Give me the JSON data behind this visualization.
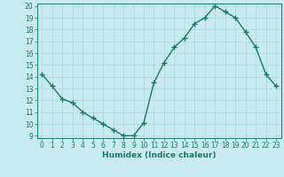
{
  "x": [
    0,
    1,
    2,
    3,
    4,
    5,
    6,
    7,
    8,
    9,
    10,
    11,
    12,
    13,
    14,
    15,
    16,
    17,
    18,
    19,
    20,
    21,
    22,
    23
  ],
  "y": [
    14.2,
    13.2,
    12.1,
    11.8,
    11.0,
    10.5,
    10.0,
    9.5,
    9.0,
    9.0,
    10.1,
    13.5,
    15.2,
    16.5,
    17.3,
    18.5,
    19.0,
    20.0,
    19.5,
    19.0,
    17.8,
    16.5,
    14.2,
    13.2
  ],
  "line_color": "#1a7a6a",
  "bg_color": "#c8ecec",
  "grid_color": "#aed8d8",
  "xlabel": "Humidex (Indice chaleur)",
  "ylim": [
    9,
    20
  ],
  "xlim": [
    -0.5,
    23.5
  ],
  "yticks": [
    9,
    10,
    11,
    12,
    13,
    14,
    15,
    16,
    17,
    18,
    19,
    20
  ],
  "xticks": [
    0,
    1,
    2,
    3,
    4,
    5,
    6,
    7,
    8,
    9,
    10,
    11,
    12,
    13,
    14,
    15,
    16,
    17,
    18,
    19,
    20,
    21,
    22,
    23
  ],
  "tick_fontsize": 5.5,
  "xlabel_fontsize": 6.5,
  "marker": "+",
  "markersize": 4,
  "linewidth": 1.0
}
